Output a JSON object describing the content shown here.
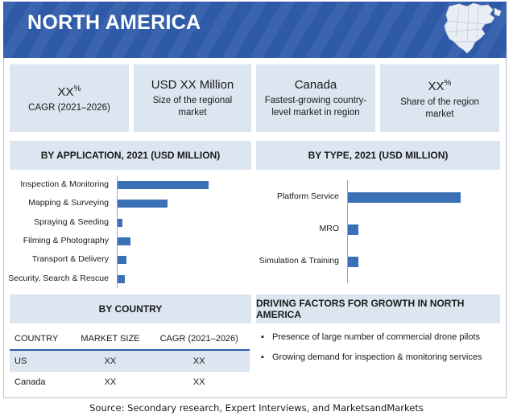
{
  "header": {
    "title": "NORTH AMERICA"
  },
  "cards": [
    {
      "big": "XX",
      "sup": "%",
      "small": "CAGR (2021–2026)"
    },
    {
      "big": "USD XX Million",
      "sup": "",
      "small": "Size of the regional market"
    },
    {
      "big": "Canada",
      "sup": "",
      "small": "Fastest-growing country-level market in region"
    },
    {
      "big": "XX",
      "sup": "%",
      "small": "Share of the region market"
    }
  ],
  "application_section": {
    "title": "BY APPLICATION, 2021 (USD MILLION)"
  },
  "type_section": {
    "title": "BY TYPE, 2021 (USD MILLION)"
  },
  "country_section": {
    "title": "BY COUNTRY",
    "columns": [
      "COUNTRY",
      "MARKET SIZE",
      "CAGR (2021–2026)"
    ],
    "rows": [
      {
        "country": "US",
        "size": "XX",
        "cagr": "XX"
      },
      {
        "country": "Canada",
        "size": "XX",
        "cagr": "XX"
      }
    ]
  },
  "factors_section": {
    "title": "DRIVING FACTORS FOR GROWTH IN NORTH AMERICA",
    "bullet": "▪",
    "items": [
      "Presence of large number of commercial drone pilots",
      "Growing demand for inspection & monitoring services"
    ]
  },
  "source": "Source: Secondary research, Expert Interviews, and MarketsandMarkets",
  "colors": {
    "header": "#2e5aa8",
    "panel": "#dbe6f1",
    "bar": "#3b6fb6"
  },
  "chart_data": [
    {
      "type": "bar",
      "orientation": "horizontal",
      "title": "BY APPLICATION, 2021 (USD MILLION)",
      "categories": [
        "Inspection & Monitoring",
        "Mapping & Surveying",
        "Spraying & Seeding",
        "Filming & Photography",
        "Transport & Delivery",
        "Security, Search & Rescue"
      ],
      "values": [
        100,
        55,
        5,
        14,
        10,
        8
      ]
    },
    {
      "type": "bar",
      "orientation": "horizontal",
      "title": "BY TYPE, 2021 (USD MILLION)",
      "categories": [
        "Platform Service",
        "MRO",
        "Simulation & Training"
      ],
      "values": [
        100,
        9,
        9
      ]
    }
  ]
}
